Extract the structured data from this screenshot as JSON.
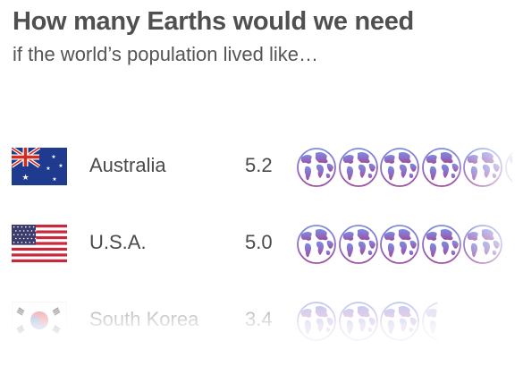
{
  "title": "How many Earths would we need",
  "subtitle": "if the world’s population lived like…",
  "colors": {
    "globe_top": "#7b8cdf",
    "globe_mid": "#8e6fc7",
    "globe_bottom": "#9b4f9e",
    "text": "#4a4a4a"
  },
  "chart_data": {
    "type": "pictogram",
    "unit_icon": "earth-globe-icon",
    "categories": [
      "Australia",
      "U.S.A.",
      "South Korea"
    ],
    "values": [
      5.2,
      5.0,
      3.4
    ],
    "value_labels": [
      "5.2",
      "5.0",
      "3.4"
    ],
    "flags": [
      "australia-flag-icon",
      "usa-flag-icon",
      "south-korea-flag-icon"
    ],
    "title": "How many Earths would we need",
    "subtitle": "if the world’s population lived like…"
  }
}
